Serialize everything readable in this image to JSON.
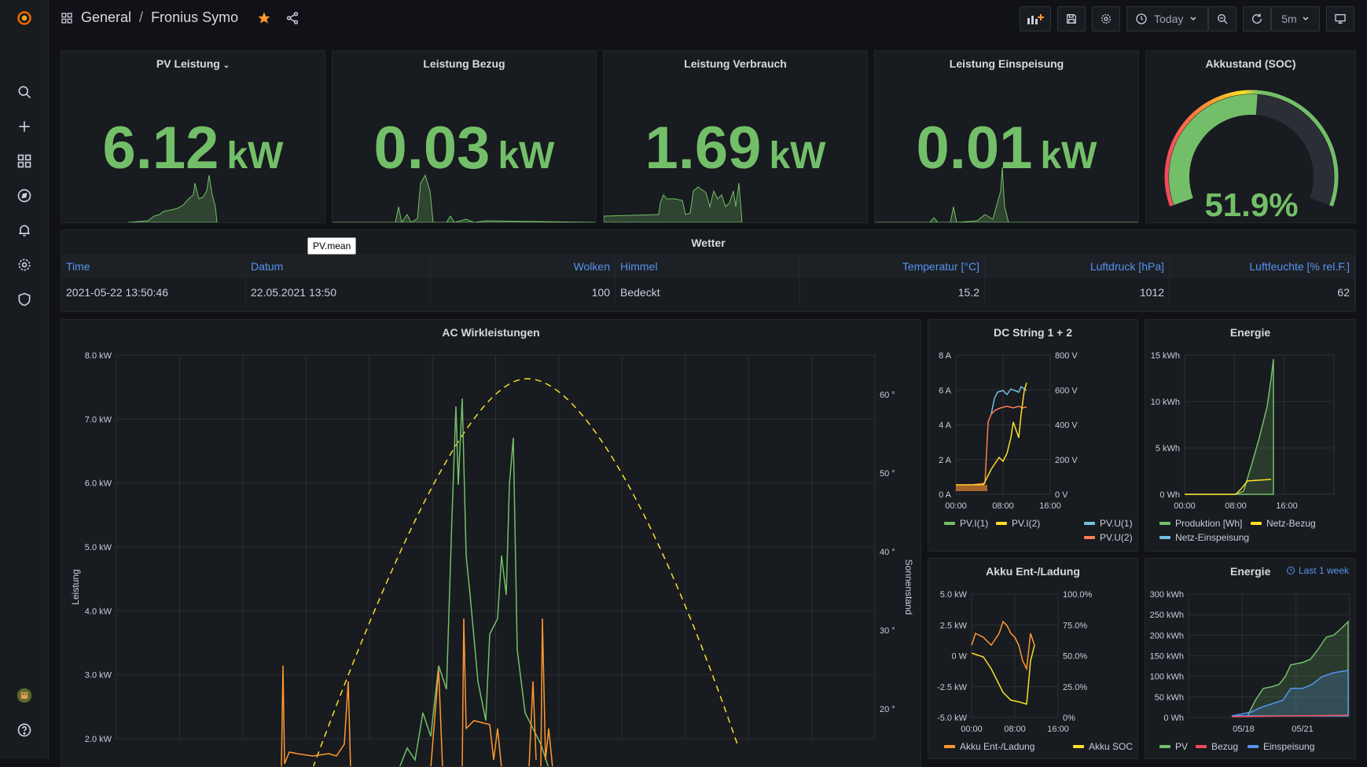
{
  "breadcrumb": {
    "folder": "General",
    "sep": "/",
    "dashboard": "Fronius Symo"
  },
  "toolbar": {
    "time_range": "Today",
    "refresh": "5m"
  },
  "stats": [
    {
      "title": "PV Leistung",
      "value": "6.12",
      "unit": "kW"
    },
    {
      "title": "Leistung Bezug",
      "value": "0.03",
      "unit": "kW"
    },
    {
      "title": "Leistung Verbrauch",
      "value": "1.69",
      "unit": "kW"
    },
    {
      "title": "Leistung Einspeisung",
      "value": "0.01",
      "unit": "kW"
    }
  ],
  "gauge": {
    "title": "Akkustand (SOC)",
    "value": "51.9%",
    "fraction": 0.519
  },
  "tooltip": "PV.mean",
  "weather": {
    "title": "Wetter",
    "headers": [
      "Time",
      "Datum",
      "Wolken",
      "Himmel",
      "Temperatur [°C]",
      "Luftdruck [hPa]",
      "Luftfeuchte [% rel.F.]"
    ],
    "row": [
      "2021-05-22 13:50:46",
      "22.05.2021 13:50",
      "100",
      "Bedeckt",
      "15.2",
      "1012",
      "62"
    ]
  },
  "ac": {
    "title": "AC Wirkleistungen",
    "ylabel": "Leistung",
    "y2label": "Sonnenstand",
    "yticks": [
      "8.0 kW",
      "7.0 kW",
      "6.0 kW",
      "5.0 kW",
      "4.0 kW",
      "3.0 kW",
      "2.0 kW"
    ],
    "y2ticks": [
      "60 °",
      "50 °",
      "40 °",
      "30 °",
      "20 °"
    ]
  },
  "dc": {
    "title": "DC String 1 + 2",
    "yticks": [
      "8 A",
      "6 A",
      "4 A",
      "2 A",
      "0 A"
    ],
    "y2ticks": [
      "800 V",
      "600 V",
      "400 V",
      "200 V",
      "0 V"
    ],
    "xticks": [
      "00:00",
      "08:00",
      "16:00"
    ],
    "legend": [
      "PV.I(1)",
      "PV.I(2)",
      "PV.U(1)",
      "PV.U(2)"
    ]
  },
  "energie1": {
    "title": "Energie",
    "yticks": [
      "15 kWh",
      "10 kWh",
      "5 kWh",
      "0 Wh"
    ],
    "xticks": [
      "00:00",
      "08:00",
      "16:00"
    ],
    "legend": [
      "Produktion [Wh]",
      "Netz-Bezug",
      "Netz-Einspeisung"
    ]
  },
  "akku": {
    "title": "Akku Ent-/Ladung",
    "yticks": [
      "5.0 kW",
      "2.5 kW",
      "0 W",
      "-2.5 kW",
      "-5.0 kW"
    ],
    "y2ticks": [
      "100.0%",
      "75.0%",
      "50.0%",
      "25.0%",
      "0%"
    ],
    "xticks": [
      "00:00",
      "08:00",
      "16:00"
    ],
    "legend": [
      "Akku Ent-/Ladung",
      "Akku SOC"
    ]
  },
  "energie2": {
    "title": "Energie",
    "badge": "Last 1 week",
    "yticks": [
      "300 kWh",
      "250 kWh",
      "200 kWh",
      "150 kWh",
      "100 kWh",
      "50 kWh",
      "0 Wh"
    ],
    "xticks": [
      "05/18",
      "05/21"
    ],
    "legend": [
      "PV",
      "Bezug",
      "Einspeisung"
    ]
  },
  "colors": {
    "green": "#73bf69",
    "orange": "#ff9830",
    "yellow": "#fade2a",
    "blue": "#5794f2",
    "cyan": "#73bfe0",
    "red": "#f2495c",
    "salmon": "#ff7f50"
  }
}
